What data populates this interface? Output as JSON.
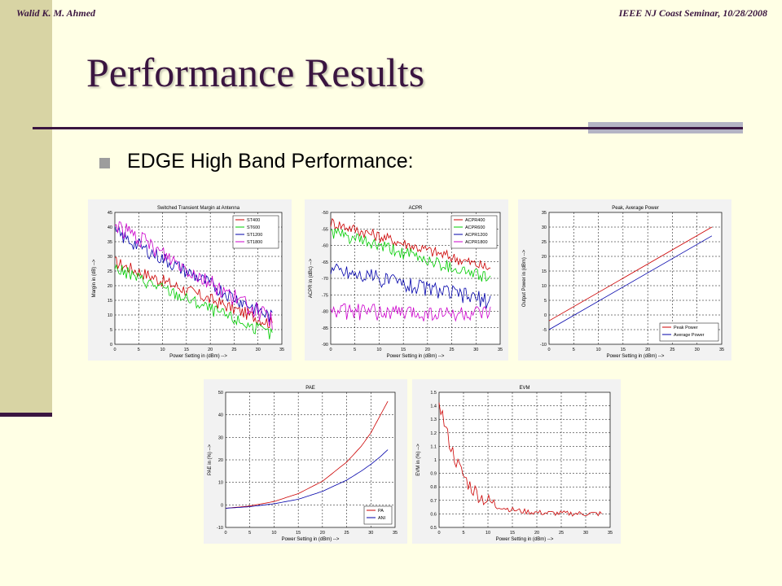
{
  "header": {
    "author": "Walid K. M. Ahmed",
    "seminar": "IEEE NJ Coast Seminar, 10/28/2008"
  },
  "slide": {
    "title": "Performance Results",
    "bullet": "EDGE High Band Performance:"
  },
  "colors": {
    "background": "#ffffe5",
    "accent": "#3a1540",
    "sidebar": "#d8d4a4",
    "red": "#cc0000",
    "green": "#00cc00",
    "blue": "#0000aa",
    "magenta": "#cc00cc"
  },
  "chart_data": [
    {
      "type": "line",
      "title": "Switched Transient Margin at Antenna",
      "xlabel": "Power Setting in (dBm) -->",
      "ylabel": "Margin in (dB) -->",
      "xlim": [
        0,
        35
      ],
      "ylim": [
        0,
        45
      ],
      "xticks": [
        0,
        5,
        10,
        15,
        20,
        25,
        30,
        35
      ],
      "yticks": [
        0,
        5,
        10,
        15,
        20,
        25,
        30,
        35,
        40,
        45
      ],
      "grid": true,
      "legend_position": "top-right",
      "x_range": [
        0,
        33
      ],
      "series": [
        {
          "name": "ST400",
          "color": "#cc0000",
          "start": 28,
          "end": 7,
          "noise": 2.2
        },
        {
          "name": "ST600",
          "color": "#00cc00",
          "start": 26,
          "end": 3,
          "noise": 2.2
        },
        {
          "name": "ST1200",
          "color": "#0000aa",
          "start": 38,
          "end": 9,
          "noise": 2.5
        },
        {
          "name": "ST1800",
          "color": "#cc00cc",
          "start": 41,
          "end": 8,
          "noise": 3
        }
      ]
    },
    {
      "type": "line",
      "title": "ACPR",
      "xlabel": "Power Setting in (dBm) -->",
      "ylabel": "ACPR in (dBc) -->",
      "xlim": [
        0,
        35
      ],
      "ylim": [
        -90,
        -50
      ],
      "xticks": [
        0,
        5,
        10,
        15,
        20,
        25,
        30,
        35
      ],
      "yticks": [
        -90,
        -85,
        -80,
        -75,
        -70,
        -65,
        -60,
        -55,
        -50
      ],
      "grid": true,
      "legend_position": "top-right",
      "x_range": [
        0,
        33
      ],
      "series": [
        {
          "name": "ACPR400",
          "color": "#cc0000",
          "start": -53,
          "end": -67,
          "noise": 1.8
        },
        {
          "name": "ACPR600",
          "color": "#00cc00",
          "start": -56,
          "end": -70,
          "noise": 2.0
        },
        {
          "name": "ACPR1200",
          "color": "#0000aa",
          "start": -67,
          "end": -77,
          "noise": 2.5
        },
        {
          "name": "ACPR1800",
          "color": "#cc00cc",
          "start": -80,
          "end": -81,
          "noise": 2.5
        }
      ]
    },
    {
      "type": "line",
      "title": "Peak, Average Power",
      "xlabel": "Power Setting in (dBm) -->",
      "ylabel": "Output Power in (dBm) -->",
      "xlim": [
        0,
        35
      ],
      "ylim": [
        -10,
        35
      ],
      "xticks": [
        0,
        5,
        10,
        15,
        20,
        25,
        30,
        35
      ],
      "yticks": [
        -10,
        -5,
        0,
        5,
        10,
        15,
        20,
        25,
        30,
        35
      ],
      "grid": true,
      "legend_position": "bottom-right",
      "x_range": [
        0,
        33
      ],
      "series": [
        {
          "name": "Peak Power",
          "color": "#cc0000",
          "start": -2,
          "end": 30,
          "noise": 0
        },
        {
          "name": "Average Power",
          "color": "#0000aa",
          "start": -5,
          "end": 27,
          "noise": 0
        }
      ]
    },
    {
      "type": "line",
      "title": "PAE",
      "xlabel": "Power Setting in (dBm) -->",
      "ylabel": "PAE in (%) -->",
      "xlim": [
        0,
        35
      ],
      "ylim": [
        -10,
        50
      ],
      "xticks": [
        0,
        5,
        10,
        15,
        20,
        25,
        30,
        35
      ],
      "yticks": [
        -10,
        0,
        10,
        20,
        30,
        40,
        50
      ],
      "grid": true,
      "legend_position": "bottom-right",
      "series": [
        {
          "name": "PA",
          "color": "#cc0000",
          "x": [
            0,
            5,
            10,
            15,
            20,
            25,
            28,
            30,
            32,
            33.5
          ],
          "y": [
            -1.5,
            -0.5,
            1.5,
            5,
            10.5,
            19,
            26,
            32,
            40,
            46
          ]
        },
        {
          "name": "ANI",
          "color": "#0000aa",
          "x": [
            0,
            5,
            10,
            15,
            20,
            25,
            28,
            30,
            32,
            33.5
          ],
          "y": [
            -1.5,
            -0.8,
            0.5,
            2.5,
            6,
            11,
            15,
            18,
            21.5,
            24.5
          ]
        }
      ]
    },
    {
      "type": "line",
      "title": "EVM",
      "xlabel": "Power Setting in (dBm) -->",
      "ylabel": "EVM in (%) -->",
      "xlim": [
        0,
        35
      ],
      "ylim": [
        0.5,
        1.5
      ],
      "xticks": [
        0,
        5,
        10,
        15,
        20,
        25,
        30,
        35
      ],
      "yticks": [
        0.5,
        0.6,
        0.7,
        0.8,
        0.9,
        1,
        1.1,
        1.2,
        1.3,
        1.4,
        1.5
      ],
      "grid": true,
      "series": [
        {
          "name": "",
          "color": "#cc0000",
          "decay": true,
          "start": 1.45,
          "floor": 0.6,
          "noise": 0.02
        }
      ]
    }
  ]
}
